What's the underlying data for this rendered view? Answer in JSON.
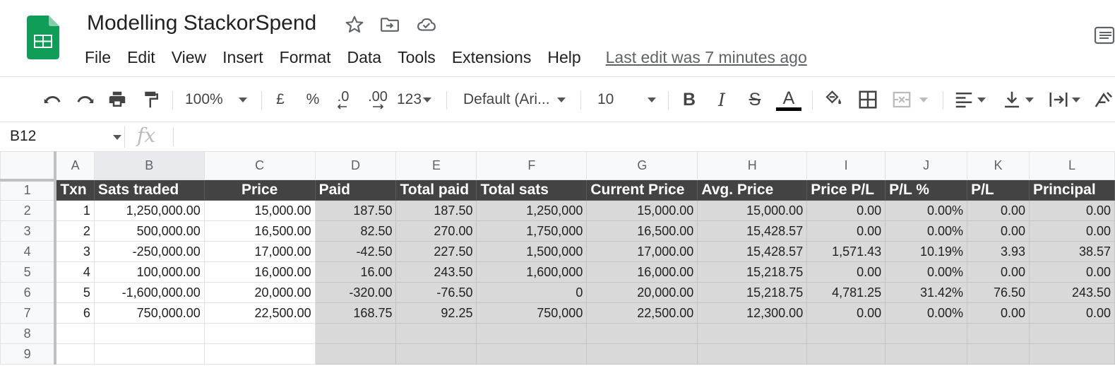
{
  "app": {
    "title": "Modelling StackorSpend",
    "icons": [
      "star-icon",
      "move-to-folder-icon",
      "cloud-saved-icon"
    ],
    "brand_color": "#0f9d58"
  },
  "menu": {
    "items": [
      "File",
      "Edit",
      "View",
      "Insert",
      "Format",
      "Data",
      "Tools",
      "Extensions",
      "Help"
    ],
    "last_edit": "Last edit was 7 minutes ago"
  },
  "toolbar": {
    "zoom": "100%",
    "currency": "£",
    "percent": "%",
    "decrease_decimal": ".0",
    "increase_decimal": ".00",
    "more_formats": "123",
    "font": "Default (Ari...",
    "font_size": "10",
    "bold": "B",
    "italic": "I",
    "strike": "S",
    "text_color_label": "A"
  },
  "formula_bar": {
    "cell_ref": "B12",
    "fx_label": "fx",
    "value": ""
  },
  "sheet": {
    "col_letters": [
      "A",
      "B",
      "C",
      "D",
      "E",
      "F",
      "G",
      "H",
      "I",
      "J",
      "K",
      "L"
    ],
    "row_numbers": [
      "1",
      "2",
      "3",
      "4",
      "5",
      "6",
      "7",
      "8",
      "9"
    ],
    "headers": [
      "Txn",
      "Sats traded",
      "Price",
      "Paid",
      "Total paid",
      "Total sats",
      "Current Price",
      "Avg. Price",
      "Price P/L",
      "P/L %",
      "P/L",
      "Principal"
    ],
    "rows": [
      [
        "1",
        "1,250,000.00",
        "15,000.00",
        "187.50",
        "187.50",
        "1,250,000",
        "15,000.00",
        "15,000.00",
        "0.00",
        "0.00%",
        "0.00",
        "0.00"
      ],
      [
        "2",
        "500,000.00",
        "16,500.00",
        "82.50",
        "270.00",
        "1,750,000",
        "16,500.00",
        "15,428.57",
        "0.00",
        "0.00%",
        "0.00",
        "0.00"
      ],
      [
        "3",
        "-250,000.00",
        "17,000.00",
        "-42.50",
        "227.50",
        "1,500,000",
        "17,000.00",
        "15,428.57",
        "1,571.43",
        "10.19%",
        "3.93",
        "38.57"
      ],
      [
        "4",
        "100,000.00",
        "16,000.00",
        "16.00",
        "243.50",
        "1,600,000",
        "16,000.00",
        "15,218.75",
        "0.00",
        "0.00%",
        "0.00",
        "0.00"
      ],
      [
        "5",
        "-1,600,000.00",
        "20,000.00",
        "-320.00",
        "-76.50",
        "0",
        "20,000.00",
        "15,218.75",
        "4,781.25",
        "31.42%",
        "76.50",
        "243.50"
      ],
      [
        "6",
        "750,000.00",
        "22,500.00",
        "168.75",
        "92.25",
        "750,000",
        "22,500.00",
        "12,300.00",
        "0.00",
        "0.00%",
        "0.00",
        "0.00"
      ],
      [
        "",
        "",
        "",
        "",
        "",
        "",
        "",
        "",
        "",
        "",
        "",
        ""
      ],
      [
        "",
        "",
        "",
        "",
        "",
        "",
        "",
        "",
        "",
        "",
        "",
        ""
      ]
    ]
  }
}
